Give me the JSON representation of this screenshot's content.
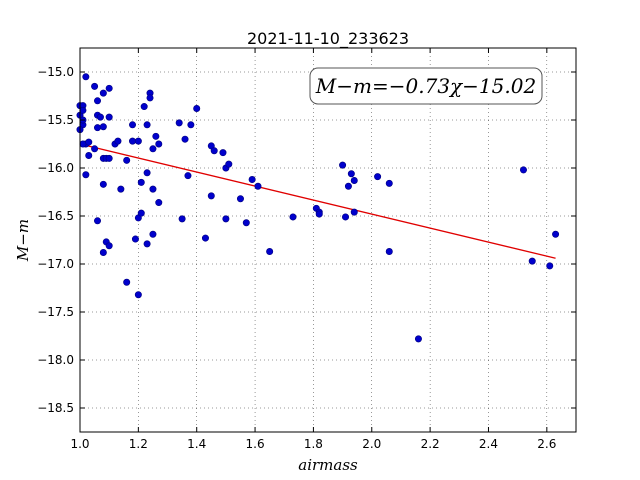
{
  "chart_data": {
    "type": "scatter",
    "title": "2021-11-10_233623",
    "xlabel": "airmass",
    "ylabel": "M−m",
    "xlim": [
      1.0,
      2.7
    ],
    "ylim": [
      -18.75,
      -14.75
    ],
    "y_inverted": true,
    "grid": true,
    "xticks": [
      "1.0",
      "1.2",
      "1.4",
      "1.6",
      "1.8",
      "2.0",
      "2.2",
      "2.4",
      "2.6"
    ],
    "xtick_values": [
      1.0,
      1.2,
      1.4,
      1.6,
      1.8,
      2.0,
      2.2,
      2.4,
      2.6
    ],
    "yticks": [
      "−15.0",
      "−15.5",
      "−16.0",
      "−16.5",
      "−17.0",
      "−17.5",
      "−18.0",
      "−18.5"
    ],
    "ytick_values": [
      -15.0,
      -15.5,
      -16.0,
      -16.5,
      -17.0,
      -17.5,
      -18.0,
      -18.5
    ],
    "annotation": "M−m=−0.73χ−15.02",
    "fit": {
      "slope": -0.73,
      "intercept": -15.02,
      "x_range": [
        1.0,
        2.63
      ],
      "color": "#e00000"
    },
    "point_color": "#0000cc",
    "points": [
      [
        1.0,
        -15.35
      ],
      [
        1.0,
        -15.45
      ],
      [
        1.01,
        -15.35
      ],
      [
        1.01,
        -15.4
      ],
      [
        1.01,
        -15.55
      ],
      [
        1.0,
        -15.6
      ],
      [
        1.01,
        -15.5
      ],
      [
        1.02,
        -15.05
      ],
      [
        1.02,
        -15.75
      ],
      [
        1.01,
        -15.75
      ],
      [
        1.02,
        -16.07
      ],
      [
        1.03,
        -15.87
      ],
      [
        1.03,
        -15.73
      ],
      [
        1.05,
        -15.15
      ],
      [
        1.06,
        -15.3
      ],
      [
        1.06,
        -15.45
      ],
      [
        1.06,
        -15.58
      ],
      [
        1.05,
        -15.8
      ],
      [
        1.06,
        -16.55
      ],
      [
        1.07,
        -15.47
      ],
      [
        1.08,
        -15.22
      ],
      [
        1.08,
        -15.57
      ],
      [
        1.08,
        -15.9
      ],
      [
        1.09,
        -15.9
      ],
      [
        1.08,
        -16.17
      ],
      [
        1.08,
        -16.88
      ],
      [
        1.09,
        -16.77
      ],
      [
        1.1,
        -15.17
      ],
      [
        1.1,
        -15.47
      ],
      [
        1.1,
        -15.9
      ],
      [
        1.1,
        -16.81
      ],
      [
        1.12,
        -15.75
      ],
      [
        1.13,
        -15.72
      ],
      [
        1.14,
        -16.22
      ],
      [
        1.16,
        -15.92
      ],
      [
        1.16,
        -17.19
      ],
      [
        1.18,
        -15.55
      ],
      [
        1.18,
        -15.72
      ],
      [
        1.19,
        -16.74
      ],
      [
        1.2,
        -15.72
      ],
      [
        1.2,
        -16.52
      ],
      [
        1.21,
        -16.47
      ],
      [
        1.21,
        -16.15
      ],
      [
        1.2,
        -17.32
      ],
      [
        1.22,
        -15.36
      ],
      [
        1.23,
        -15.55
      ],
      [
        1.23,
        -16.05
      ],
      [
        1.23,
        -16.79
      ],
      [
        1.24,
        -15.22
      ],
      [
        1.24,
        -15.27
      ],
      [
        1.25,
        -15.8
      ],
      [
        1.25,
        -16.22
      ],
      [
        1.25,
        -16.69
      ],
      [
        1.26,
        -15.67
      ],
      [
        1.27,
        -15.75
      ],
      [
        1.27,
        -16.36
      ],
      [
        1.34,
        -15.53
      ],
      [
        1.35,
        -16.53
      ],
      [
        1.36,
        -15.7
      ],
      [
        1.37,
        -16.08
      ],
      [
        1.38,
        -15.55
      ],
      [
        1.4,
        -15.38
      ],
      [
        1.43,
        -16.73
      ],
      [
        1.45,
        -15.77
      ],
      [
        1.45,
        -16.29
      ],
      [
        1.46,
        -15.82
      ],
      [
        1.49,
        -15.84
      ],
      [
        1.5,
        -16.0
      ],
      [
        1.5,
        -16.53
      ],
      [
        1.51,
        -15.96
      ],
      [
        1.55,
        -16.32
      ],
      [
        1.57,
        -16.57
      ],
      [
        1.59,
        -16.12
      ],
      [
        1.61,
        -16.19
      ],
      [
        1.65,
        -16.87
      ],
      [
        1.73,
        -16.51
      ],
      [
        1.81,
        -16.42
      ],
      [
        1.82,
        -16.46
      ],
      [
        1.82,
        -16.48
      ],
      [
        1.9,
        -15.97
      ],
      [
        1.91,
        -16.51
      ],
      [
        1.92,
        -16.19
      ],
      [
        1.93,
        -16.06
      ],
      [
        1.94,
        -16.13
      ],
      [
        1.94,
        -16.46
      ],
      [
        2.02,
        -16.09
      ],
      [
        2.06,
        -16.16
      ],
      [
        2.06,
        -16.87
      ],
      [
        2.16,
        -17.78
      ],
      [
        2.52,
        -16.02
      ],
      [
        2.55,
        -16.97
      ],
      [
        2.61,
        -17.02
      ],
      [
        2.63,
        -16.69
      ]
    ]
  }
}
